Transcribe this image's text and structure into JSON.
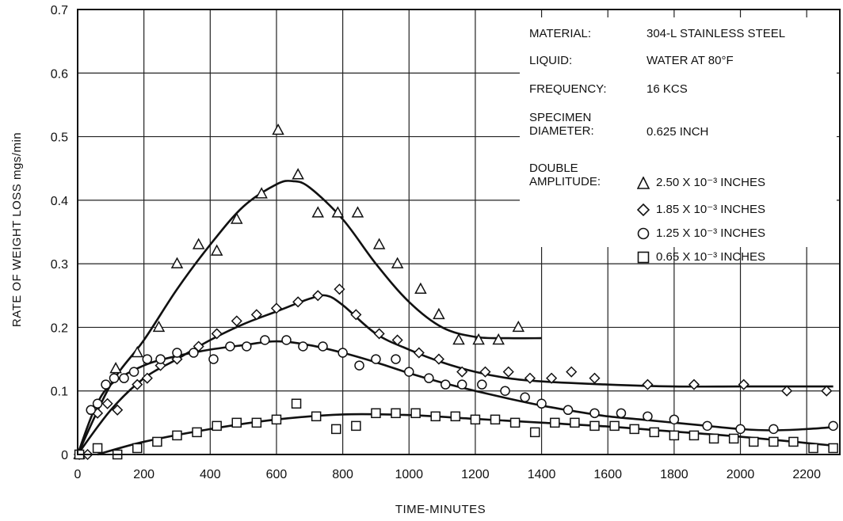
{
  "info": {
    "material": {
      "key": "MATERIAL:",
      "value": "304-L STAINLESS STEEL"
    },
    "liquid": {
      "key": "LIQUID:",
      "value": "WATER AT 80°F"
    },
    "frequency": {
      "key": "FREQUENCY:",
      "value": "16 KCS"
    },
    "specimen": {
      "key": "SPECIMEN\nDIAMETER:",
      "value": "0.625 INCH"
    },
    "amplitude": {
      "key": "DOUBLE\nAMPLITUDE:"
    }
  },
  "chart_data": {
    "type": "scatter",
    "xlabel": "TIME-MINUTES",
    "ylabel": "RATE OF WEIGHT LOSS mgs/min",
    "xlim": [
      0,
      2300
    ],
    "ylim": [
      0,
      0.7
    ],
    "xticks": [
      0,
      200,
      400,
      600,
      800,
      1000,
      1200,
      1400,
      1600,
      1800,
      2000,
      2200
    ],
    "yticks": [
      0,
      0.1,
      0.2,
      0.3,
      0.4,
      0.5,
      0.6,
      0.7
    ],
    "grid": true,
    "legend_position": "top-right",
    "series": [
      {
        "name": "2.50 X 10⁻³ INCHES",
        "marker": "triangle",
        "points": [
          [
            5,
            0.0
          ],
          [
            50,
            0.07
          ],
          [
            115,
            0.135
          ],
          [
            180,
            0.16
          ],
          [
            245,
            0.2
          ],
          [
            300,
            0.3
          ],
          [
            365,
            0.33
          ],
          [
            420,
            0.32
          ],
          [
            480,
            0.37
          ],
          [
            555,
            0.41
          ],
          [
            605,
            0.51
          ],
          [
            665,
            0.44
          ],
          [
            725,
            0.38
          ],
          [
            785,
            0.38
          ],
          [
            845,
            0.38
          ],
          [
            910,
            0.33
          ],
          [
            965,
            0.3
          ],
          [
            1035,
            0.26
          ],
          [
            1090,
            0.22
          ],
          [
            1150,
            0.18
          ],
          [
            1210,
            0.18
          ],
          [
            1270,
            0.18
          ],
          [
            1330,
            0.2
          ]
        ],
        "curve": [
          [
            0,
            0
          ],
          [
            100,
            0.11
          ],
          [
            200,
            0.18
          ],
          [
            300,
            0.26
          ],
          [
            400,
            0.33
          ],
          [
            500,
            0.39
          ],
          [
            600,
            0.425
          ],
          [
            650,
            0.43
          ],
          [
            700,
            0.42
          ],
          [
            800,
            0.37
          ],
          [
            900,
            0.3
          ],
          [
            1000,
            0.24
          ],
          [
            1100,
            0.2
          ],
          [
            1200,
            0.185
          ],
          [
            1300,
            0.183
          ],
          [
            1400,
            0.183
          ]
        ]
      },
      {
        "name": "1.85 X 10⁻³ INCHES",
        "marker": "diamond",
        "points": [
          [
            5,
            0.0
          ],
          [
            30,
            0.0
          ],
          [
            60,
            0.065
          ],
          [
            90,
            0.08
          ],
          [
            120,
            0.07
          ],
          [
            180,
            0.11
          ],
          [
            210,
            0.12
          ],
          [
            250,
            0.14
          ],
          [
            300,
            0.15
          ],
          [
            365,
            0.17
          ],
          [
            420,
            0.19
          ],
          [
            480,
            0.21
          ],
          [
            540,
            0.22
          ],
          [
            600,
            0.23
          ],
          [
            665,
            0.24
          ],
          [
            725,
            0.25
          ],
          [
            790,
            0.26
          ],
          [
            840,
            0.22
          ],
          [
            910,
            0.19
          ],
          [
            965,
            0.18
          ],
          [
            1030,
            0.16
          ],
          [
            1090,
            0.15
          ],
          [
            1160,
            0.13
          ],
          [
            1230,
            0.13
          ],
          [
            1300,
            0.13
          ],
          [
            1365,
            0.12
          ],
          [
            1430,
            0.12
          ],
          [
            1490,
            0.13
          ],
          [
            1560,
            0.12
          ],
          [
            1720,
            0.11
          ],
          [
            1860,
            0.11
          ],
          [
            2010,
            0.11
          ],
          [
            2140,
            0.1
          ],
          [
            2260,
            0.1
          ]
        ],
        "curve": [
          [
            0,
            0
          ],
          [
            100,
            0.07
          ],
          [
            200,
            0.12
          ],
          [
            300,
            0.15
          ],
          [
            400,
            0.18
          ],
          [
            500,
            0.205
          ],
          [
            600,
            0.225
          ],
          [
            700,
            0.245
          ],
          [
            750,
            0.25
          ],
          [
            800,
            0.235
          ],
          [
            900,
            0.19
          ],
          [
            1000,
            0.165
          ],
          [
            1100,
            0.145
          ],
          [
            1200,
            0.13
          ],
          [
            1300,
            0.12
          ],
          [
            1400,
            0.115
          ],
          [
            1600,
            0.11
          ],
          [
            1800,
            0.107
          ],
          [
            2000,
            0.107
          ],
          [
            2200,
            0.107
          ],
          [
            2280,
            0.107
          ]
        ]
      },
      {
        "name": "1.25 X 10⁻³ INCHES",
        "marker": "circle",
        "points": [
          [
            5,
            0.0
          ],
          [
            40,
            0.07
          ],
          [
            60,
            0.08
          ],
          [
            85,
            0.11
          ],
          [
            110,
            0.12
          ],
          [
            140,
            0.12
          ],
          [
            170,
            0.13
          ],
          [
            210,
            0.15
          ],
          [
            250,
            0.15
          ],
          [
            300,
            0.16
          ],
          [
            350,
            0.16
          ],
          [
            410,
            0.15
          ],
          [
            460,
            0.17
          ],
          [
            510,
            0.17
          ],
          [
            565,
            0.18
          ],
          [
            630,
            0.18
          ],
          [
            680,
            0.17
          ],
          [
            740,
            0.17
          ],
          [
            800,
            0.16
          ],
          [
            850,
            0.14
          ],
          [
            900,
            0.15
          ],
          [
            960,
            0.15
          ],
          [
            1000,
            0.13
          ],
          [
            1060,
            0.12
          ],
          [
            1110,
            0.11
          ],
          [
            1160,
            0.11
          ],
          [
            1220,
            0.11
          ],
          [
            1290,
            0.1
          ],
          [
            1350,
            0.09
          ],
          [
            1400,
            0.08
          ],
          [
            1480,
            0.07
          ],
          [
            1560,
            0.065
          ],
          [
            1640,
            0.065
          ],
          [
            1720,
            0.06
          ],
          [
            1800,
            0.055
          ],
          [
            1900,
            0.045
          ],
          [
            2000,
            0.04
          ],
          [
            2100,
            0.04
          ],
          [
            2280,
            0.045
          ]
        ],
        "curve": [
          [
            0,
            0
          ],
          [
            50,
            0.07
          ],
          [
            100,
            0.11
          ],
          [
            200,
            0.14
          ],
          [
            300,
            0.155
          ],
          [
            400,
            0.165
          ],
          [
            500,
            0.172
          ],
          [
            600,
            0.178
          ],
          [
            700,
            0.172
          ],
          [
            800,
            0.16
          ],
          [
            900,
            0.145
          ],
          [
            1000,
            0.128
          ],
          [
            1100,
            0.113
          ],
          [
            1200,
            0.1
          ],
          [
            1300,
            0.088
          ],
          [
            1400,
            0.077
          ],
          [
            1500,
            0.068
          ],
          [
            1600,
            0.06
          ],
          [
            1700,
            0.055
          ],
          [
            1800,
            0.05
          ],
          [
            1900,
            0.045
          ],
          [
            2000,
            0.04
          ],
          [
            2100,
            0.038
          ],
          [
            2200,
            0.04
          ],
          [
            2280,
            0.043
          ]
        ]
      },
      {
        "name": "0.65 X 10⁻³ INCHES",
        "marker": "square",
        "points": [
          [
            5,
            0.0
          ],
          [
            60,
            0.01
          ],
          [
            120,
            0.0
          ],
          [
            180,
            0.01
          ],
          [
            240,
            0.02
          ],
          [
            300,
            0.03
          ],
          [
            360,
            0.035
          ],
          [
            420,
            0.045
          ],
          [
            480,
            0.05
          ],
          [
            540,
            0.05
          ],
          [
            600,
            0.055
          ],
          [
            660,
            0.08
          ],
          [
            720,
            0.06
          ],
          [
            780,
            0.04
          ],
          [
            840,
            0.045
          ],
          [
            900,
            0.065
          ],
          [
            960,
            0.065
          ],
          [
            1020,
            0.065
          ],
          [
            1080,
            0.06
          ],
          [
            1140,
            0.06
          ],
          [
            1200,
            0.055
          ],
          [
            1260,
            0.055
          ],
          [
            1320,
            0.05
          ],
          [
            1380,
            0.035
          ],
          [
            1440,
            0.05
          ],
          [
            1500,
            0.05
          ],
          [
            1560,
            0.045
          ],
          [
            1620,
            0.045
          ],
          [
            1680,
            0.04
          ],
          [
            1740,
            0.035
          ],
          [
            1800,
            0.03
          ],
          [
            1860,
            0.03
          ],
          [
            1920,
            0.025
          ],
          [
            1980,
            0.025
          ],
          [
            2040,
            0.02
          ],
          [
            2100,
            0.02
          ],
          [
            2160,
            0.02
          ],
          [
            2220,
            0.01
          ],
          [
            2280,
            0.01
          ]
        ],
        "curve": [
          [
            60,
            0
          ],
          [
            200,
            0.02
          ],
          [
            400,
            0.04
          ],
          [
            600,
            0.055
          ],
          [
            800,
            0.063
          ],
          [
            1000,
            0.062
          ],
          [
            1200,
            0.056
          ],
          [
            1400,
            0.05
          ],
          [
            1600,
            0.044
          ],
          [
            1800,
            0.036
          ],
          [
            2000,
            0.028
          ],
          [
            2200,
            0.018
          ],
          [
            2280,
            0.014
          ]
        ]
      }
    ]
  }
}
